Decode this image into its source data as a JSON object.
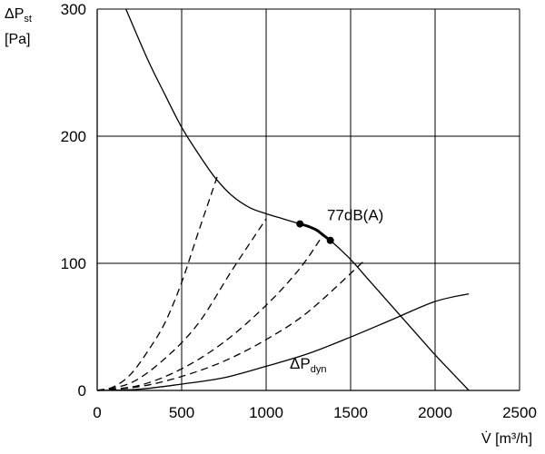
{
  "chart_data": {
    "type": "line",
    "title": "",
    "xlabel": "V̇ [m³/h]",
    "ylabel": {
      "main": "ΔP",
      "sub": "st",
      "unit": "[Pa]"
    },
    "xlim": [
      0,
      2500
    ],
    "ylim": [
      0,
      300
    ],
    "x_ticks": [
      0,
      500,
      1000,
      1500,
      2000,
      2500
    ],
    "y_ticks": [
      0,
      100,
      200,
      300
    ],
    "grid": true,
    "series": [
      {
        "style": "solid",
        "x": [
          170,
          300,
          400,
          500,
          600,
          700,
          800,
          900,
          1000,
          1100,
          1200,
          1300,
          1380,
          1500,
          1600,
          1700,
          1800,
          1900,
          2000,
          2100,
          2200
        ],
        "y": [
          300,
          260,
          233,
          207,
          186,
          167,
          153,
          144,
          139,
          135,
          131,
          126,
          118,
          103,
          88,
          73,
          58,
          43,
          28,
          14,
          0
        ]
      },
      {
        "style": "bold",
        "x": [
          1200,
          1250,
          1300,
          1340,
          1380
        ],
        "y": [
          131,
          129,
          126,
          122,
          118
        ]
      },
      {
        "name": "ΔPdyn",
        "style": "solid",
        "x": [
          0,
          250,
          500,
          750,
          1000,
          1250,
          1500,
          1750,
          2000,
          2200
        ],
        "y": [
          0,
          1,
          5,
          10,
          19,
          29,
          42,
          56,
          70,
          76
        ]
      },
      {
        "style": "dashed",
        "x": [
          0,
          100,
          200,
          300,
          400,
          500,
          600,
          710
        ],
        "y": [
          0,
          3,
          13,
          31,
          53,
          85,
          125,
          168
        ]
      },
      {
        "style": "dashed",
        "x": [
          0,
          200,
          400,
          600,
          800,
          1000
        ],
        "y": [
          0,
          6,
          25,
          53,
          95,
          135
        ]
      },
      {
        "style": "dashed",
        "x": [
          0,
          250,
          500,
          750,
          1000,
          1200,
          1340
        ],
        "y": [
          0,
          4,
          17,
          38,
          67,
          96,
          123
        ]
      },
      {
        "style": "dashed",
        "x": [
          0,
          250,
          500,
          750,
          1000,
          1250,
          1580
        ],
        "y": [
          0,
          3,
          11,
          23,
          40,
          62,
          102
        ]
      }
    ],
    "points": [
      {
        "x": 1200,
        "y": 131
      },
      {
        "x": 1380,
        "y": 118
      }
    ],
    "annotations": [
      {
        "text": "77dB(A)",
        "x": 1360,
        "y": 134
      },
      {
        "text": "ΔP",
        "sub": "dyn",
        "x": 1140,
        "y": 17
      }
    ]
  }
}
